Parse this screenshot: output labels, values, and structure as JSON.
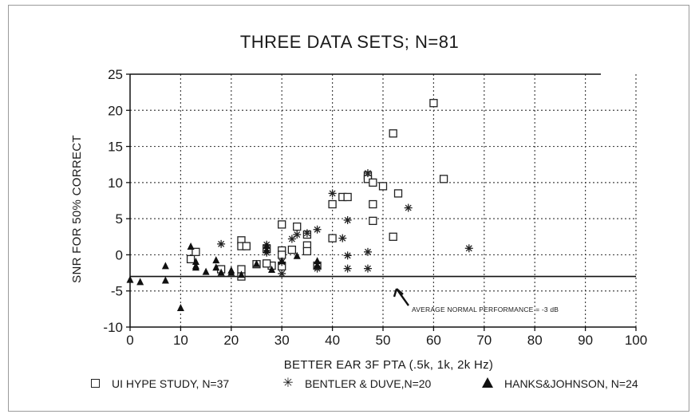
{
  "chart_data": {
    "type": "scatter",
    "title": "THREE DATA SETS;  N=81",
    "xlabel": "BETTER EAR 3F PTA (.5k, 1k, 2k Hz)",
    "ylabel": "SNR FOR 50% CORRECT",
    "xlim": [
      0,
      100
    ],
    "ylim": [
      -10,
      25
    ],
    "x_ticks": [
      "0",
      "10",
      "20",
      "30",
      "40",
      "50",
      "60",
      "70",
      "80",
      "90",
      "100"
    ],
    "y_ticks": [
      "-10",
      "-5",
      "0",
      "5",
      "10",
      "15",
      "20",
      "25"
    ],
    "grid": true,
    "legend_placement": "bottom",
    "reference_line": {
      "y": -3,
      "label": "AVERAGE NORMAL PERFORMANCE = -3 dB"
    },
    "series": [
      {
        "name": "UI HYPE STUDY, N=37",
        "marker": "square",
        "points": [
          [
            12,
            -0.6
          ],
          [
            13,
            0.4
          ],
          [
            18,
            -2
          ],
          [
            22,
            2
          ],
          [
            22,
            1.2
          ],
          [
            22,
            -2
          ],
          [
            22,
            -3
          ],
          [
            23,
            1.2
          ],
          [
            25,
            -1.3
          ],
          [
            27,
            0.8
          ],
          [
            28,
            -1.5
          ],
          [
            30,
            4.2
          ],
          [
            30,
            0.6
          ],
          [
            30,
            0
          ],
          [
            30,
            -1.6
          ],
          [
            32,
            0.7
          ],
          [
            33,
            3.9
          ],
          [
            35,
            2.8
          ],
          [
            35,
            1.3
          ],
          [
            35,
            0.5
          ],
          [
            40,
            7
          ],
          [
            40,
            2.3
          ],
          [
            42,
            8
          ],
          [
            43,
            8
          ],
          [
            47,
            11
          ],
          [
            47,
            10.5
          ],
          [
            48,
            10
          ],
          [
            48,
            7
          ],
          [
            48,
            4.7
          ],
          [
            50,
            9.5
          ],
          [
            52,
            16.8
          ],
          [
            52,
            2.5
          ],
          [
            53,
            8.5
          ],
          [
            60,
            21
          ],
          [
            62,
            10.5
          ],
          [
            37,
            -1.5
          ],
          [
            27,
            -1.2
          ]
        ]
      },
      {
        "name": "BENTLER & DUVE,N=20",
        "marker": "asterisk",
        "points": [
          [
            18,
            1.5
          ],
          [
            27,
            1.4
          ],
          [
            30,
            -2.6
          ],
          [
            32,
            2.2
          ],
          [
            33,
            2.8
          ],
          [
            37,
            3.5
          ],
          [
            37,
            -1.9
          ],
          [
            40,
            8.5
          ],
          [
            42,
            2.3
          ],
          [
            43,
            4.8
          ],
          [
            43,
            -0.1
          ],
          [
            43,
            -1.9
          ],
          [
            47,
            11.3
          ],
          [
            47,
            0.4
          ],
          [
            47,
            -1.9
          ],
          [
            55,
            6.5
          ],
          [
            67,
            0.9
          ],
          [
            35,
            3
          ],
          [
            27,
            0.3
          ],
          [
            30,
            -1
          ]
        ]
      },
      {
        "name": "HANKS&JOHNSON, N=24",
        "marker": "filled-triangle",
        "points": [
          [
            0,
            -3.5
          ],
          [
            2,
            -3.8
          ],
          [
            7,
            -1.6
          ],
          [
            7,
            -3.6
          ],
          [
            10,
            -7.4
          ],
          [
            12,
            1.1
          ],
          [
            13,
            -1
          ],
          [
            13,
            -1.6
          ],
          [
            13,
            -1.8
          ],
          [
            17,
            -0.8
          ],
          [
            17,
            -1.8
          ],
          [
            18,
            -2.5
          ],
          [
            20,
            -2.2
          ],
          [
            20,
            -2.5
          ],
          [
            25,
            -1.3
          ],
          [
            27,
            1.2
          ],
          [
            27,
            0.6
          ],
          [
            30,
            -0.9
          ],
          [
            37,
            -0.9
          ],
          [
            37,
            -1.5
          ],
          [
            22,
            -2.8
          ],
          [
            28,
            -2.1
          ],
          [
            33,
            -0.2
          ],
          [
            15,
            -2.4
          ]
        ]
      }
    ]
  }
}
